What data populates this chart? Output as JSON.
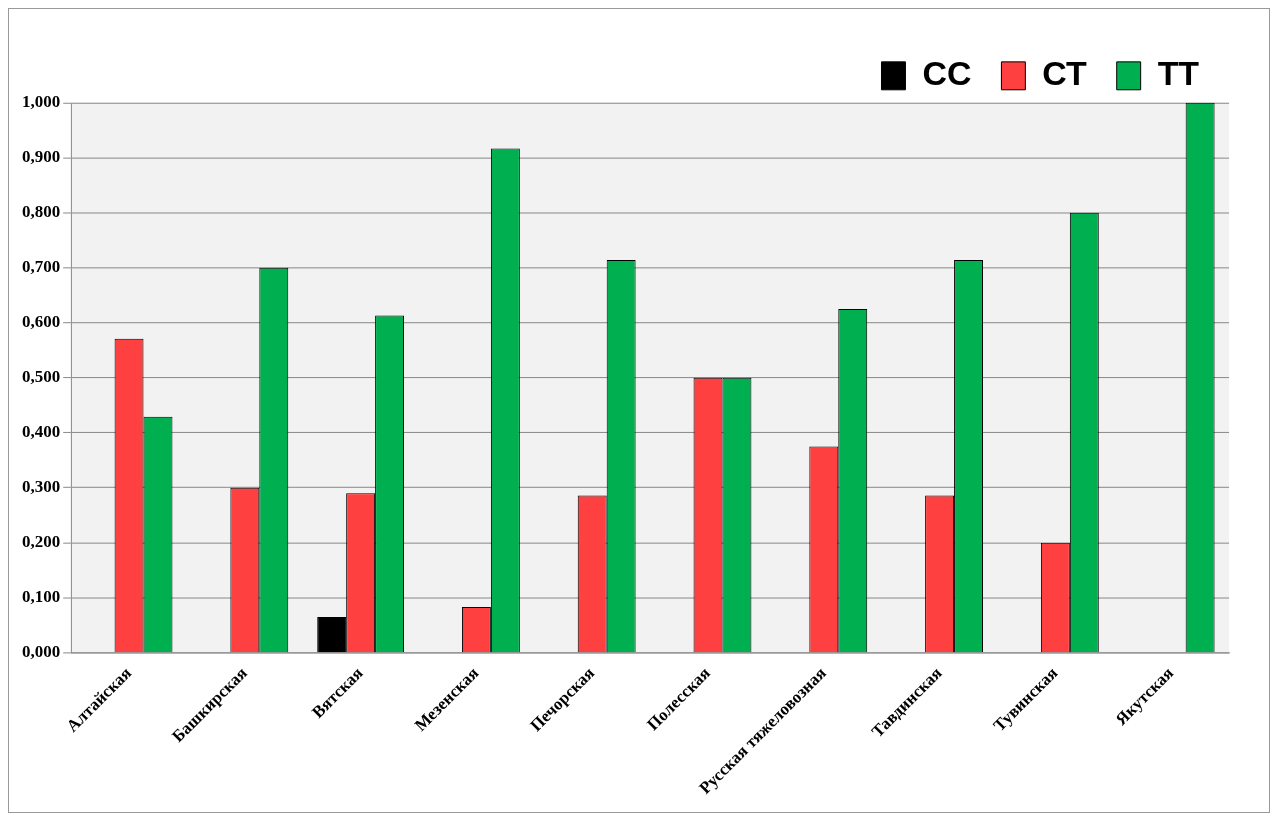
{
  "chart_data": {
    "type": "bar",
    "categories": [
      "Алтайская",
      "Башкирская",
      "Вятская",
      "Мезенская",
      "Печорская",
      "Полесская",
      "Русская тяжеловозная",
      "Тавдинская",
      "Тувинская",
      "Якутская"
    ],
    "series": [
      {
        "name": "СС",
        "color": "#000000",
        "values": [
          0,
          0,
          0.065,
          0,
          0,
          0,
          0,
          0,
          0,
          0
        ]
      },
      {
        "name": "СТ",
        "color": "#ff4040",
        "values": [
          0.571,
          0.3,
          0.29,
          0.083,
          0.286,
          0.5,
          0.375,
          0.286,
          0.2,
          0
        ]
      },
      {
        "name": "ТТ",
        "color": "#00b050",
        "values": [
          0.429,
          0.7,
          0.613,
          0.917,
          0.714,
          0.5,
          0.625,
          0.714,
          0.8,
          1
        ]
      }
    ],
    "ylim": [
      0,
      1
    ],
    "yticks": [
      {
        "value": 0,
        "label": "0,000"
      },
      {
        "value": 0.1,
        "label": "0,100"
      },
      {
        "value": 0.2,
        "label": "0,200"
      },
      {
        "value": 0.3,
        "label": "0,300"
      },
      {
        "value": 0.4,
        "label": "0,400"
      },
      {
        "value": 0.5,
        "label": "0,500"
      },
      {
        "value": 0.6,
        "label": "0,600"
      },
      {
        "value": 0.7,
        "label": "0,700"
      },
      {
        "value": 0.8,
        "label": "0,800"
      },
      {
        "value": 0.9,
        "label": "0,900"
      },
      {
        "value": 1,
        "label": "1,000"
      }
    ],
    "grid": "y",
    "legend": "top right"
  }
}
